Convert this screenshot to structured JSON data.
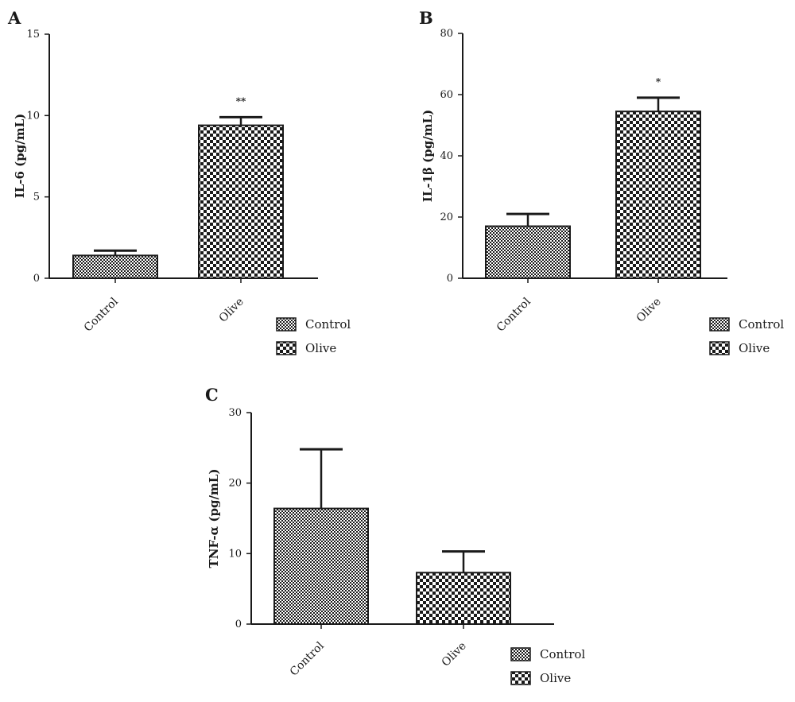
{
  "chart_data": [
    {
      "panel": "A",
      "type": "bar",
      "categories": [
        "Control",
        "Olive"
      ],
      "values": [
        1.4,
        9.4
      ],
      "errors": [
        0.3,
        0.5
      ],
      "annotations": [
        "",
        "**"
      ],
      "ylabel": "IL-6 (pg/mL)",
      "ylim": [
        0,
        15
      ],
      "yticks": [
        0,
        5,
        10,
        15
      ],
      "legend": [
        "Control",
        "Olive"
      ],
      "legend_position": "bottom-right",
      "grid": false
    },
    {
      "panel": "B",
      "type": "bar",
      "categories": [
        "Control",
        "Olive"
      ],
      "values": [
        17,
        54.5
      ],
      "errors": [
        4,
        4.5
      ],
      "annotations": [
        "",
        "*"
      ],
      "ylabel": "IL-1β (pg/mL)",
      "ylim": [
        0,
        80
      ],
      "yticks": [
        0,
        20,
        40,
        60,
        80
      ],
      "legend": [
        "Control",
        "Olive"
      ],
      "legend_position": "bottom-right",
      "grid": false
    },
    {
      "panel": "C",
      "type": "bar",
      "categories": [
        "Control",
        "Olive"
      ],
      "values": [
        16.4,
        7.3
      ],
      "errors": [
        8.4,
        3
      ],
      "annotations": [
        "",
        ""
      ],
      "ylabel": "TNF-α (pg/mL)",
      "ylim": [
        0,
        30
      ],
      "yticks": [
        0,
        10,
        20,
        30
      ],
      "legend": [
        "Control",
        "Olive"
      ],
      "legend_position": "bottom-right",
      "grid": false
    }
  ]
}
